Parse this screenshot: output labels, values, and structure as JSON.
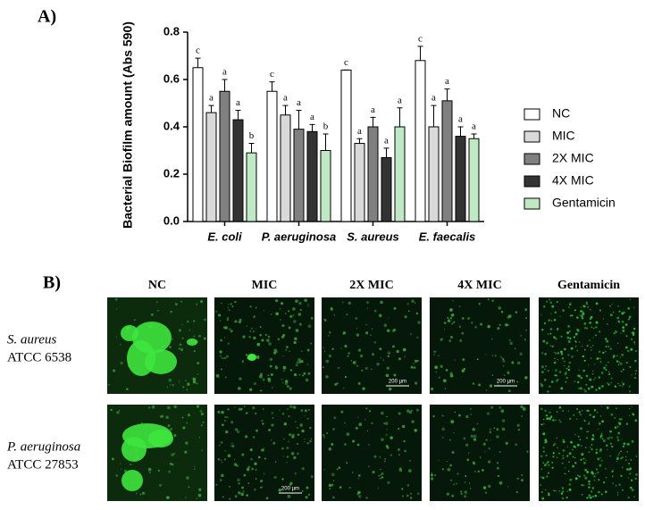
{
  "chart_data": {
    "type": "bar",
    "panel_label": "A)",
    "y_label": "Bacterial Biofilm amount (Abs 590)",
    "categories": [
      "E. coli",
      "P. aeruginosa",
      "S. aureus",
      "E. faecalis"
    ],
    "series": [
      {
        "name": "NC",
        "color": "#ffffff",
        "values": [
          0.65,
          0.55,
          0.64,
          0.68
        ],
        "errors": [
          0.04,
          0.04,
          0,
          0.06
        ],
        "letters": [
          "c",
          "c",
          "c",
          "c"
        ]
      },
      {
        "name": "MIC",
        "color": "#d9d9d9",
        "values": [
          0.46,
          0.45,
          0.33,
          0.4
        ],
        "errors": [
          0.03,
          0.04,
          0.02,
          0.09
        ],
        "letters": [
          "a",
          "a",
          "a",
          "a"
        ]
      },
      {
        "name": "2X MIC",
        "color": "#808080",
        "values": [
          0.55,
          0.39,
          0.4,
          0.51
        ],
        "errors": [
          0.05,
          0.08,
          0.04,
          0.05
        ],
        "letters": [
          "a",
          "a",
          "a",
          "a"
        ]
      },
      {
        "name": "4X MIC",
        "color": "#333333",
        "values": [
          0.43,
          0.38,
          0.27,
          0.36
        ],
        "errors": [
          0.04,
          0.03,
          0.04,
          0.04
        ],
        "letters": [
          "a",
          "a",
          "a",
          "a"
        ]
      },
      {
        "name": "Gentamicin",
        "color": "#bfe9c4",
        "values": [
          0.29,
          0.3,
          0.4,
          0.35
        ],
        "errors": [
          0.04,
          0.07,
          0.08,
          0.02
        ],
        "letters": [
          "b",
          "b",
          "a",
          "a"
        ]
      }
    ],
    "ylim": [
      0,
      0.8
    ],
    "yticks": [
      {
        "value": 0,
        "label": "0.0"
      },
      0.2,
      0.4,
      0.6,
      0.8
    ],
    "legend": "right"
  },
  "panel_b": {
    "panel_label": "B)",
    "columns": [
      "NC",
      "MIC",
      "2X MIC",
      "4X MIC",
      "Gentamicin"
    ],
    "rows": [
      {
        "species": "S. aureus",
        "strain": "ATCC 6538"
      },
      {
        "species": "P. aeruginosa",
        "strain": "ATCC 27853"
      }
    ],
    "scale_bars": [
      {
        "row": 0,
        "col": 2,
        "label": "200 µm"
      },
      {
        "row": 0,
        "col": 3,
        "label": "200 µm"
      },
      {
        "row": 1,
        "col": 1,
        "label": "200 µm"
      }
    ]
  }
}
